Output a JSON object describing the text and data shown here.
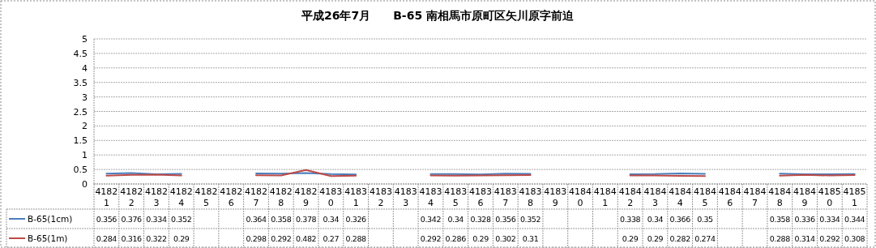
{
  "chart_data": {
    "type": "line",
    "title": "平成26年7月　　B-65 南相馬市原町区矢川原字前迫",
    "categories": [
      "41821",
      "41822",
      "41823",
      "41824",
      "41825",
      "41826",
      "41827",
      "41828",
      "41829",
      "41830",
      "41831",
      "41832",
      "41833",
      "41834",
      "41835",
      "41836",
      "41837",
      "41838",
      "41839",
      "41840",
      "41841",
      "41842",
      "41843",
      "41844",
      "41845",
      "41846",
      "41847",
      "41848",
      "41849",
      "41850",
      "41851"
    ],
    "series": [
      {
        "name": "B-65(1cm)",
        "color": "#4a7ebb",
        "values": [
          0.356,
          0.376,
          0.334,
          0.352,
          null,
          null,
          0.364,
          0.358,
          0.378,
          0.34,
          0.326,
          null,
          null,
          0.342,
          0.34,
          0.328,
          0.356,
          0.352,
          null,
          null,
          null,
          0.338,
          0.34,
          0.366,
          0.35,
          null,
          null,
          0.358,
          0.336,
          0.334,
          0.344
        ]
      },
      {
        "name": "B-65(1m)",
        "color": "#be4b48",
        "values": [
          0.284,
          0.316,
          0.322,
          0.29,
          null,
          null,
          0.298,
          0.292,
          0.482,
          0.27,
          0.288,
          null,
          null,
          0.292,
          0.286,
          0.29,
          0.302,
          0.31,
          null,
          null,
          null,
          0.29,
          0.29,
          0.282,
          0.274,
          null,
          null,
          0.288,
          0.314,
          0.292,
          0.308
        ]
      }
    ],
    "ylim": [
      0,
      5
    ],
    "yticks": [
      0,
      0.5,
      1,
      1.5,
      2,
      2.5,
      3,
      3.5,
      4,
      4.5,
      5
    ],
    "grid": "y",
    "legend": "bottom left",
    "data_labels": true
  }
}
